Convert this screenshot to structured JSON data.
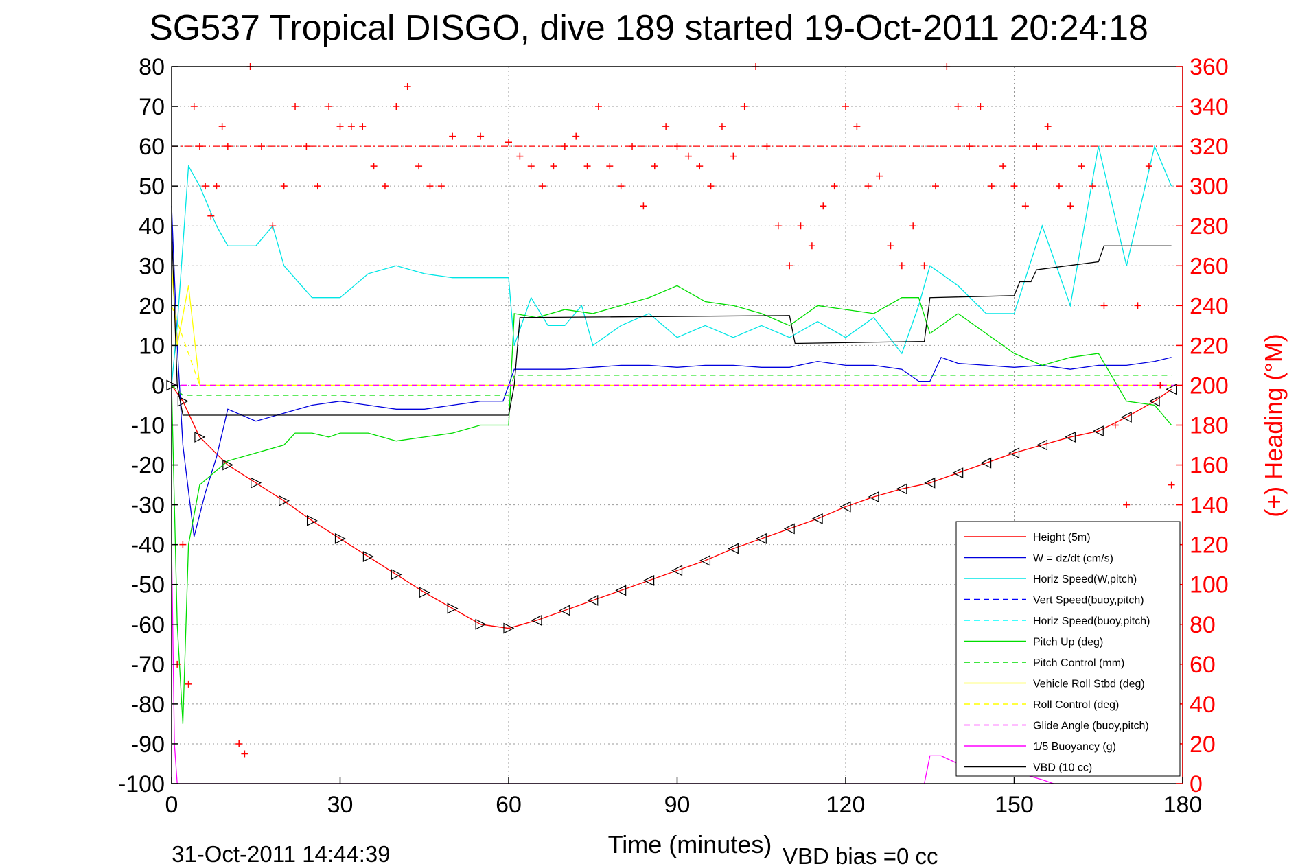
{
  "chart_data": {
    "type": "line",
    "title": "SG537 Tropical DISGO, dive 189 started 19-Oct-2011 20:24:18",
    "xlabel": "Time (minutes)",
    "ylabel": "",
    "y2label": "(+) Heading (°M)",
    "xlim": [
      0,
      180
    ],
    "ylim": [
      -100,
      80
    ],
    "y2lim": [
      0,
      360
    ],
    "x_ticks": [
      "0",
      "30",
      "60",
      "90",
      "120",
      "150",
      "180"
    ],
    "y_ticks": [
      "80",
      "70",
      "60",
      "50",
      "40",
      "30",
      "20",
      "10",
      "0",
      "-10",
      "-20",
      "-30",
      "-40",
      "-50",
      "-60",
      "-70",
      "-80",
      "-90",
      "-100"
    ],
    "y2_ticks": [
      "360",
      "340",
      "320",
      "300",
      "280",
      "260",
      "240",
      "220",
      "200",
      "180",
      "160",
      "140",
      "120",
      "100",
      "80",
      "60",
      "40",
      "20",
      "0"
    ],
    "grid": true,
    "legend_position": "bottom-right",
    "reference_lines": [
      {
        "axis": "y2",
        "value": 320,
        "color": "#ff0000",
        "style": "dash-dot"
      },
      {
        "axis": "y",
        "value": 0,
        "color": "#ff00ff",
        "style": "dashed"
      }
    ],
    "series": [
      {
        "name": "Height (5m)",
        "color": "#ff0000",
        "style": "solid",
        "x": [
          0,
          2,
          5,
          10,
          15,
          20,
          25,
          30,
          35,
          40,
          45,
          50,
          55,
          60,
          65,
          70,
          75,
          80,
          85,
          90,
          95,
          100,
          105,
          110,
          115,
          120,
          125,
          130,
          135,
          140,
          145,
          150,
          155,
          160,
          165,
          170,
          175,
          178
        ],
        "y": [
          0,
          -4,
          -13,
          -20,
          -24.5,
          -29,
          -34,
          -38.5,
          -43,
          -47.5,
          -52,
          -56,
          -60,
          -61,
          -59,
          -56.5,
          -54,
          -51.5,
          -49,
          -46.5,
          -44,
          -41,
          -38.5,
          -36,
          -33.5,
          -30.5,
          -28,
          -26,
          -24.5,
          -22,
          -19.5,
          -17,
          -15,
          -13,
          -11.5,
          -8,
          -4,
          -1
        ]
      },
      {
        "name": "W = dz/dt (cm/s)",
        "color": "#0000dd",
        "style": "solid",
        "x": [
          0,
          1,
          2,
          4,
          6,
          8,
          10,
          15,
          20,
          25,
          30,
          35,
          40,
          45,
          50,
          55,
          59,
          61,
          65,
          70,
          75,
          80,
          85,
          90,
          95,
          100,
          105,
          110,
          115,
          120,
          125,
          130,
          133,
          135,
          137,
          140,
          145,
          150,
          155,
          160,
          165,
          170,
          175,
          178
        ],
        "y": [
          45,
          10,
          -15,
          -38,
          -27,
          -18,
          -6,
          -9,
          -7,
          -5,
          -4,
          -5,
          -6,
          -6,
          -5,
          -4,
          -4,
          4,
          4,
          4,
          4.5,
          5,
          5,
          4.5,
          5,
          5,
          4.5,
          4.5,
          6,
          5,
          5,
          4,
          1,
          1,
          7,
          5.5,
          5,
          4.5,
          5,
          4,
          5,
          5,
          6,
          7
        ]
      },
      {
        "name": "Horiz Speed(W,pitch)",
        "color": "#00e5e5",
        "style": "solid",
        "x": [
          0,
          1,
          2,
          3,
          5,
          8,
          10,
          15,
          18,
          20,
          25,
          30,
          35,
          40,
          45,
          50,
          55,
          60,
          61,
          64,
          67,
          70,
          73,
          75,
          80,
          85,
          90,
          95,
          100,
          105,
          110,
          115,
          120,
          125,
          130,
          133,
          135,
          140,
          145,
          150,
          155,
          160,
          165,
          170,
          175,
          178
        ],
        "y": [
          0,
          15,
          35,
          55,
          50,
          40,
          35,
          35,
          40,
          30,
          22,
          22,
          28,
          30,
          28,
          27,
          27,
          27,
          10,
          22,
          15,
          15,
          20,
          10,
          15,
          18,
          12,
          15,
          12,
          15,
          12,
          16,
          12,
          17,
          8,
          20,
          30,
          25,
          18,
          18,
          40,
          20,
          60,
          30,
          60,
          50
        ]
      },
      {
        "name": "Vert Speed(buoy,pitch)",
        "color": "#0000ff",
        "style": "dashed",
        "x": [],
        "y": []
      },
      {
        "name": "Horiz Speed(buoy,pitch)",
        "color": "#00ffff",
        "style": "dashed",
        "x": [],
        "y": []
      },
      {
        "name": "Pitch Up (deg)",
        "color": "#00dd00",
        "style": "solid",
        "x": [
          0,
          1,
          2,
          3,
          5,
          10,
          15,
          20,
          22,
          25,
          28,
          30,
          35,
          40,
          45,
          50,
          55,
          60,
          61,
          65,
          70,
          75,
          80,
          85,
          90,
          95,
          100,
          105,
          110,
          115,
          120,
          125,
          130,
          133,
          135,
          140,
          145,
          150,
          155,
          160,
          165,
          170,
          175,
          178
        ],
        "y": [
          0,
          -60,
          -85,
          -40,
          -25,
          -19,
          -17,
          -15,
          -12,
          -12,
          -13,
          -12,
          -12,
          -14,
          -13,
          -12,
          -10,
          -10,
          18,
          17,
          19,
          18,
          20,
          22,
          25,
          21,
          20,
          18,
          15,
          20,
          19,
          18,
          22,
          22,
          13,
          18,
          13,
          8,
          5,
          7,
          8,
          -4,
          -5,
          -10
        ]
      },
      {
        "name": "Pitch Control (mm)",
        "color": "#00dd00",
        "style": "dashed",
        "x": [
          0,
          2,
          60,
          61,
          135,
          136,
          178
        ],
        "y": [
          0,
          -2.5,
          -2.5,
          2.5,
          2.5,
          2.5,
          2.5
        ]
      },
      {
        "name": "Vehicle Roll Stbd (deg)",
        "color": "#ffff00",
        "style": "solid",
        "x": [
          0,
          1,
          3,
          5,
          10,
          20,
          30,
          40,
          50,
          60,
          70,
          80,
          90,
          100,
          110,
          120,
          130,
          140,
          150,
          160,
          170,
          178
        ],
        "y": [
          30,
          10,
          25,
          0,
          0,
          0,
          0,
          0,
          0,
          0,
          0,
          0,
          0,
          0,
          0,
          0,
          0,
          0,
          0,
          0,
          0,
          0
        ]
      },
      {
        "name": "Roll Control (deg)",
        "color": "#ffff00",
        "style": "dashed",
        "x": [
          0,
          5,
          60,
          135,
          178
        ],
        "y": [
          20,
          0,
          0,
          0,
          0
        ]
      },
      {
        "name": "Glide Angle (buoy,pitch)",
        "color": "#ff00ff",
        "style": "dashed",
        "x": [
          0,
          178
        ],
        "y": [
          0,
          0
        ]
      },
      {
        "name": "1/5 Buoyancy (g)",
        "color": "#ff00ff",
        "style": "solid",
        "x": [
          0,
          0.5,
          1,
          134,
          135,
          137,
          140,
          150,
          155,
          157
        ],
        "y": [
          -40,
          -90,
          -100,
          -100,
          -93,
          -93,
          -95,
          -97,
          -99,
          -100
        ]
      },
      {
        "name": "VBD (10 cc)",
        "color": "#000000",
        "style": "solid",
        "x": [
          0,
          1,
          2,
          60,
          61,
          62,
          110,
          111,
          134,
          135,
          150,
          151,
          153,
          154,
          165,
          166,
          178
        ],
        "y": [
          40,
          0,
          -7.5,
          -7.5,
          0,
          17,
          17.5,
          10.5,
          11,
          22,
          22.5,
          26,
          26,
          29,
          31,
          35,
          35
        ]
      },
      {
        "name": "(+) Heading (°M)",
        "axis": "y2",
        "color": "#ff0000",
        "style": "marker-plus",
        "x": [
          1,
          2,
          3,
          4,
          5,
          6,
          7,
          8,
          9,
          10,
          12,
          13,
          14,
          16,
          18,
          20,
          22,
          24,
          26,
          28,
          30,
          32,
          34,
          36,
          38,
          40,
          42,
          44,
          46,
          48,
          50,
          55,
          60,
          62,
          64,
          66,
          68,
          70,
          72,
          74,
          76,
          78,
          80,
          82,
          84,
          86,
          88,
          90,
          92,
          94,
          96,
          98,
          100,
          102,
          104,
          106,
          108,
          110,
          112,
          114,
          116,
          118,
          120,
          122,
          124,
          126,
          128,
          130,
          132,
          134,
          136,
          138,
          140,
          142,
          144,
          146,
          148,
          150,
          152,
          154,
          156,
          158,
          160,
          162,
          164,
          166,
          168,
          170,
          172,
          174,
          176,
          178
        ],
        "y": [
          60,
          120,
          50,
          340,
          320,
          300,
          285,
          300,
          330,
          320,
          20,
          15,
          360,
          320,
          280,
          300,
          340,
          320,
          300,
          340,
          330,
          330,
          330,
          310,
          300,
          340,
          350,
          310,
          300,
          300,
          325,
          325,
          322,
          315,
          310,
          300,
          310,
          320,
          325,
          310,
          340,
          310,
          300,
          320,
          290,
          310,
          330,
          320,
          315,
          310,
          300,
          330,
          315,
          340,
          360,
          320,
          280,
          260,
          280,
          270,
          290,
          300,
          340,
          330,
          300,
          305,
          270,
          260,
          280,
          260,
          300,
          360,
          340,
          320,
          340,
          300,
          310,
          300,
          290,
          320,
          330,
          300,
          290,
          310,
          300,
          240,
          180,
          140,
          240,
          310,
          200,
          150
        ]
      }
    ],
    "footer_left": "31-Oct-2011 14:44:39",
    "footer_right": "VBD bias =0 cc"
  }
}
